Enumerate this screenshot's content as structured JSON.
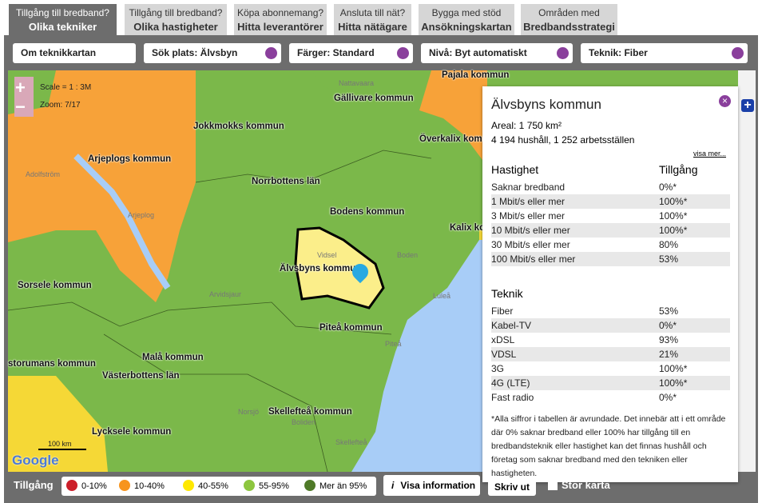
{
  "tabs": [
    {
      "top": "Tillgång till bredband?",
      "bottom": "Olika tekniker"
    },
    {
      "top": "Tillgång till bredband?",
      "bottom": "Olika hastigheter"
    },
    {
      "top": "Köpa abonnemang?",
      "bottom": "Hitta leverantörer"
    },
    {
      "top": "Ansluta till nät?",
      "bottom": "Hitta nätägare"
    },
    {
      "top": "Bygga med stöd",
      "bottom": "Ansökningskartan"
    },
    {
      "top": "Områden med",
      "bottom": "Bredbandsstrategi"
    }
  ],
  "toolbar": [
    "Om teknikkartan",
    "Sök plats: Älvsbyn",
    "Färger: Standard",
    "Nivå: Byt automatiskt",
    "Teknik: Fiber"
  ],
  "map": {
    "scale": "Scale = 1 : 3M",
    "zoom": "Zoom: 7/17",
    "scale_bar": "100 km",
    "logo": "Google",
    "labels": [
      "Gällivare kommun",
      "Jokkmokks kommun",
      "Arjeplogs kommun",
      "Överkalix kommun",
      "Norrbottens län",
      "Bodens kommun",
      "Kalix kom",
      "Älvsbyns kommun",
      "Sorsele kommun",
      "Piteå kommun",
      "Malå kommun",
      "Västerbottens län",
      "storumans kommun",
      "Skellefteå kommun",
      "Lycksele kommun",
      "Pajala kommun"
    ],
    "places": [
      "Nattavaara",
      "Adolfström",
      "Arjeplog",
      "Vidsel",
      "Boden",
      "Luleå",
      "Arvidsjaur",
      "Piteå",
      "Norsjö",
      "Boliden",
      "Skellefteå"
    ]
  },
  "popup": {
    "title": "Älvsbyns kommun",
    "area": "Areal: 1 750 km²",
    "households": "4 194 hushåll, 1 252 arbetsställen",
    "more": "visa mer...",
    "speed": {
      "header": [
        "Hastighet",
        "Tillgång"
      ],
      "rows": [
        [
          "Saknar bredband",
          "0%*"
        ],
        [
          "1 Mbit/s eller mer",
          "100%*"
        ],
        [
          "3 Mbit/s eller mer",
          "100%*"
        ],
        [
          "10 Mbit/s eller mer",
          "100%*"
        ],
        [
          "30 Mbit/s eller mer",
          "80%"
        ],
        [
          "100 Mbit/s eller mer",
          "53%"
        ]
      ]
    },
    "tech": {
      "header": "Teknik",
      "rows": [
        [
          "Fiber",
          "53%"
        ],
        [
          "Kabel-TV",
          "0%*"
        ],
        [
          "xDSL",
          "93%"
        ],
        [
          "VDSL",
          "21%"
        ],
        [
          "3G",
          "100%*"
        ],
        [
          "4G (LTE)",
          "100%*"
        ],
        [
          "Fast radio",
          "0%*"
        ]
      ]
    },
    "footnote": "*Alla siffror i tabellen är avrundade. Det innebär att i ett område där 0% saknar bredband eller 100% har tillgång till en bredbandsteknik eller hastighet kan det finnas hushåll och företag som saknar bredband med den tekniken eller hastigheten."
  },
  "legend": {
    "title": "Tillgång",
    "items": [
      "0-10%",
      "10-40%",
      "40-55%",
      "55-95%",
      "Mer än 95%"
    ]
  },
  "buttons": [
    "Visa information",
    "Skriv ut",
    "Stor karta"
  ]
}
